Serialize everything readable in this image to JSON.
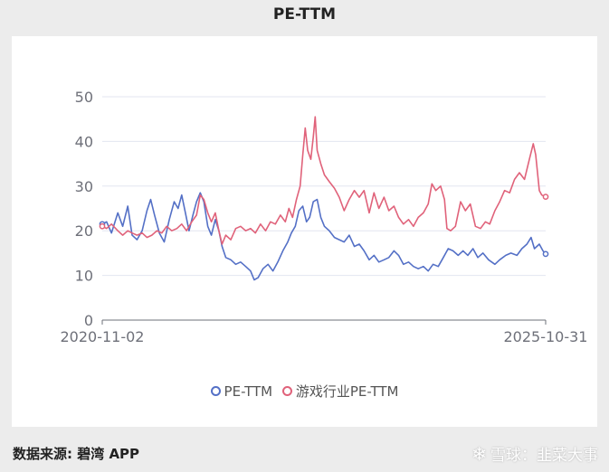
{
  "title": "PE-TTM",
  "source_label": "数据来源: 碧湾 APP",
  "brand": {
    "icon": "snowflake-icon",
    "text": "雪球：韭菜大事"
  },
  "colors": {
    "pe": "#5470c6",
    "industry": "#e0627a",
    "grid": "#e3e6f0",
    "axis": "#6e7079"
  },
  "chart_data": {
    "type": "line",
    "title": "PE-TTM",
    "xlabel": "",
    "ylabel": "",
    "x_start": "2020-11-02",
    "x_end": "2025-10-31",
    "x_tick_labels": [
      "2020-11-02",
      "2025-10-31"
    ],
    "ylim": [
      0,
      50
    ],
    "y_ticks": [
      0,
      10,
      20,
      30,
      40,
      50
    ],
    "grid": true,
    "legend_position": "bottom",
    "series": [
      {
        "name": "PE-TTM",
        "color": "#5470c6",
        "points": [
          [
            "2020-11-02",
            21.5
          ],
          [
            "2020-11-20",
            22.0
          ],
          [
            "2020-12-10",
            19.5
          ],
          [
            "2021-01-05",
            24.0
          ],
          [
            "2021-01-25",
            21.0
          ],
          [
            "2021-02-15",
            25.5
          ],
          [
            "2021-03-05",
            19.0
          ],
          [
            "2021-03-25",
            18.0
          ],
          [
            "2021-04-15",
            20.0
          ],
          [
            "2021-05-05",
            24.5
          ],
          [
            "2021-05-20",
            27.0
          ],
          [
            "2021-06-05",
            23.5
          ],
          [
            "2021-06-25",
            19.5
          ],
          [
            "2021-07-15",
            17.5
          ],
          [
            "2021-08-05",
            22.5
          ],
          [
            "2021-08-25",
            26.5
          ],
          [
            "2021-09-10",
            25.0
          ],
          [
            "2021-09-25",
            28.0
          ],
          [
            "2021-10-10",
            24.0
          ],
          [
            "2021-10-25",
            20.0
          ],
          [
            "2021-11-10",
            23.5
          ],
          [
            "2021-11-25",
            26.5
          ],
          [
            "2021-12-10",
            28.5
          ],
          [
            "2021-12-25",
            26.5
          ],
          [
            "2022-01-10",
            21.0
          ],
          [
            "2022-01-25",
            19.0
          ],
          [
            "2022-02-10",
            22.5
          ],
          [
            "2022-02-25",
            20.0
          ],
          [
            "2022-03-10",
            16.5
          ],
          [
            "2022-03-25",
            14.0
          ],
          [
            "2022-04-15",
            13.5
          ],
          [
            "2022-05-05",
            12.5
          ],
          [
            "2022-05-25",
            13.0
          ],
          [
            "2022-06-15",
            12.0
          ],
          [
            "2022-07-05",
            11.0
          ],
          [
            "2022-07-20",
            9.0
          ],
          [
            "2022-08-05",
            9.5
          ],
          [
            "2022-08-25",
            11.5
          ],
          [
            "2022-09-15",
            12.5
          ],
          [
            "2022-10-05",
            11.0
          ],
          [
            "2022-10-25",
            13.0
          ],
          [
            "2022-11-15",
            15.5
          ],
          [
            "2022-12-05",
            17.5
          ],
          [
            "2022-12-20",
            19.5
          ],
          [
            "2023-01-05",
            21.0
          ],
          [
            "2023-01-20",
            24.5
          ],
          [
            "2023-02-05",
            25.5
          ],
          [
            "2023-02-20",
            22.0
          ],
          [
            "2023-03-05",
            23.0
          ],
          [
            "2023-03-20",
            26.5
          ],
          [
            "2023-04-05",
            27.0
          ],
          [
            "2023-04-20",
            23.0
          ],
          [
            "2023-05-05",
            21.0
          ],
          [
            "2023-05-25",
            20.0
          ],
          [
            "2023-06-15",
            18.5
          ],
          [
            "2023-07-05",
            18.0
          ],
          [
            "2023-07-25",
            17.5
          ],
          [
            "2023-08-15",
            19.0
          ],
          [
            "2023-09-05",
            16.5
          ],
          [
            "2023-09-25",
            17.0
          ],
          [
            "2023-10-15",
            15.5
          ],
          [
            "2023-11-05",
            13.5
          ],
          [
            "2023-11-25",
            14.5
          ],
          [
            "2023-12-15",
            13.0
          ],
          [
            "2024-01-05",
            13.5
          ],
          [
            "2024-01-25",
            14.0
          ],
          [
            "2024-02-15",
            15.5
          ],
          [
            "2024-03-05",
            14.5
          ],
          [
            "2024-03-25",
            12.5
          ],
          [
            "2024-04-15",
            13.0
          ],
          [
            "2024-05-05",
            12.0
          ],
          [
            "2024-05-25",
            11.5
          ],
          [
            "2024-06-15",
            12.0
          ],
          [
            "2024-07-05",
            11.0
          ],
          [
            "2024-07-25",
            12.5
          ],
          [
            "2024-08-15",
            12.0
          ],
          [
            "2024-09-05",
            14.0
          ],
          [
            "2024-09-25",
            16.0
          ],
          [
            "2024-10-15",
            15.5
          ],
          [
            "2024-11-05",
            14.5
          ],
          [
            "2024-11-25",
            15.5
          ],
          [
            "2024-12-15",
            14.5
          ],
          [
            "2025-01-05",
            16.0
          ],
          [
            "2025-01-25",
            14.0
          ],
          [
            "2025-02-15",
            15.0
          ],
          [
            "2025-03-10",
            13.5
          ],
          [
            "2025-04-05",
            12.5
          ],
          [
            "2025-04-25",
            13.5
          ],
          [
            "2025-05-20",
            14.5
          ],
          [
            "2025-06-10",
            15.0
          ],
          [
            "2025-07-05",
            14.5
          ],
          [
            "2025-07-25",
            16.0
          ],
          [
            "2025-08-15",
            17.0
          ],
          [
            "2025-09-01",
            18.5
          ],
          [
            "2025-09-15",
            16.0
          ],
          [
            "2025-10-05",
            17.0
          ],
          [
            "2025-10-20",
            15.5
          ],
          [
            "2025-10-31",
            14.8
          ]
        ]
      },
      {
        "name": "游戏行业PE-TTM",
        "color": "#e0627a",
        "points": [
          [
            "2020-11-02",
            21.0
          ],
          [
            "2020-11-20",
            20.5
          ],
          [
            "2020-12-10",
            21.5
          ],
          [
            "2021-01-05",
            20.0
          ],
          [
            "2021-01-25",
            19.0
          ],
          [
            "2021-02-15",
            20.0
          ],
          [
            "2021-03-05",
            19.5
          ],
          [
            "2021-03-25",
            19.0
          ],
          [
            "2021-04-15",
            19.5
          ],
          [
            "2021-05-05",
            18.5
          ],
          [
            "2021-05-25",
            19.0
          ],
          [
            "2021-06-15",
            20.0
          ],
          [
            "2021-07-05",
            19.5
          ],
          [
            "2021-07-25",
            21.0
          ],
          [
            "2021-08-15",
            20.0
          ],
          [
            "2021-09-05",
            20.5
          ],
          [
            "2021-09-25",
            21.5
          ],
          [
            "2021-10-15",
            20.0
          ],
          [
            "2021-11-05",
            22.0
          ],
          [
            "2021-11-25",
            23.5
          ],
          [
            "2021-12-10",
            28.0
          ],
          [
            "2021-12-25",
            27.0
          ],
          [
            "2022-01-10",
            24.0
          ],
          [
            "2022-01-25",
            22.0
          ],
          [
            "2022-02-10",
            24.0
          ],
          [
            "2022-02-25",
            20.0
          ],
          [
            "2022-03-10",
            17.0
          ],
          [
            "2022-03-25",
            19.0
          ],
          [
            "2022-04-15",
            18.0
          ],
          [
            "2022-05-05",
            20.5
          ],
          [
            "2022-05-25",
            21.0
          ],
          [
            "2022-06-15",
            20.0
          ],
          [
            "2022-07-05",
            20.5
          ],
          [
            "2022-07-25",
            19.5
          ],
          [
            "2022-08-15",
            21.5
          ],
          [
            "2022-09-05",
            20.0
          ],
          [
            "2022-09-25",
            22.0
          ],
          [
            "2022-10-15",
            21.5
          ],
          [
            "2022-11-05",
            23.5
          ],
          [
            "2022-11-25",
            22.0
          ],
          [
            "2022-12-10",
            25.0
          ],
          [
            "2022-12-25",
            23.0
          ],
          [
            "2023-01-10",
            27.0
          ],
          [
            "2023-01-25",
            30.0
          ],
          [
            "2023-02-05",
            37.0
          ],
          [
            "2023-02-15",
            43.0
          ],
          [
            "2023-02-25",
            38.0
          ],
          [
            "2023-03-10",
            36.0
          ],
          [
            "2023-03-20",
            41.0
          ],
          [
            "2023-03-28",
            45.5
          ],
          [
            "2023-04-05",
            38.0
          ],
          [
            "2023-04-20",
            35.0
          ],
          [
            "2023-05-05",
            32.5
          ],
          [
            "2023-05-25",
            31.0
          ],
          [
            "2023-06-15",
            29.5
          ],
          [
            "2023-07-05",
            27.5
          ],
          [
            "2023-07-25",
            24.5
          ],
          [
            "2023-08-15",
            27.0
          ],
          [
            "2023-09-05",
            29.0
          ],
          [
            "2023-09-25",
            27.5
          ],
          [
            "2023-10-15",
            29.0
          ],
          [
            "2023-11-05",
            24.0
          ],
          [
            "2023-11-25",
            28.5
          ],
          [
            "2023-12-15",
            25.0
          ],
          [
            "2024-01-05",
            27.5
          ],
          [
            "2024-01-25",
            24.5
          ],
          [
            "2024-02-15",
            25.5
          ],
          [
            "2024-03-05",
            23.0
          ],
          [
            "2024-03-25",
            21.5
          ],
          [
            "2024-04-15",
            22.5
          ],
          [
            "2024-05-05",
            21.0
          ],
          [
            "2024-05-25",
            23.0
          ],
          [
            "2024-06-15",
            24.0
          ],
          [
            "2024-07-05",
            26.0
          ],
          [
            "2024-07-20",
            30.5
          ],
          [
            "2024-08-05",
            29.0
          ],
          [
            "2024-08-25",
            30.0
          ],
          [
            "2024-09-10",
            27.0
          ],
          [
            "2024-09-20",
            20.5
          ],
          [
            "2024-10-05",
            20.0
          ],
          [
            "2024-10-25",
            21.0
          ],
          [
            "2024-11-15",
            26.5
          ],
          [
            "2024-12-05",
            24.5
          ],
          [
            "2024-12-25",
            26.0
          ],
          [
            "2025-01-15",
            21.0
          ],
          [
            "2025-02-05",
            20.5
          ],
          [
            "2025-02-25",
            22.0
          ],
          [
            "2025-03-15",
            21.5
          ],
          [
            "2025-04-05",
            24.5
          ],
          [
            "2025-04-25",
            26.5
          ],
          [
            "2025-05-15",
            29.0
          ],
          [
            "2025-06-05",
            28.5
          ],
          [
            "2025-06-25",
            31.5
          ],
          [
            "2025-07-15",
            33.0
          ],
          [
            "2025-08-05",
            31.5
          ],
          [
            "2025-08-25",
            36.0
          ],
          [
            "2025-09-10",
            39.5
          ],
          [
            "2025-09-20",
            37.0
          ],
          [
            "2025-10-05",
            29.0
          ],
          [
            "2025-10-15",
            28.0
          ],
          [
            "2025-10-31",
            27.6
          ]
        ]
      }
    ]
  }
}
